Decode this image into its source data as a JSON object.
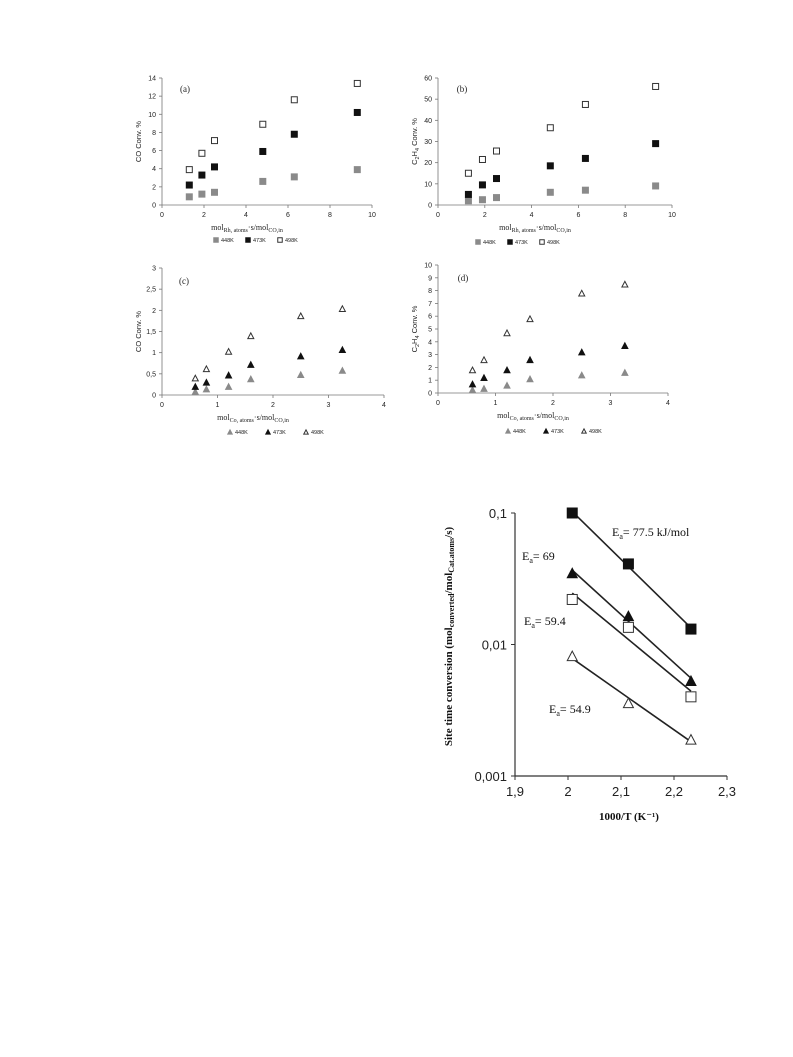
{
  "chart_data": [
    {
      "panel": "(a)",
      "type": "scatter",
      "ylabel": "CO Conv. %",
      "xlabel": "mol_Rh, atoms·s/mol_CO,in",
      "xlim": [
        0,
        10
      ],
      "ylim": [
        0,
        14
      ],
      "xticks": [
        "0",
        "2",
        "4",
        "6",
        "8",
        "10"
      ],
      "yticks": [
        "0",
        "2",
        "4",
        "6",
        "8",
        "10",
        "12",
        "14"
      ],
      "legend": [
        "448K",
        "473K",
        "498K"
      ],
      "series": [
        {
          "name": "448K",
          "marker": "square-gray",
          "x": [
            1.3,
            1.9,
            2.5,
            4.8,
            6.3,
            9.3
          ],
          "y": [
            0.9,
            1.2,
            1.4,
            2.6,
            3.1,
            3.9
          ]
        },
        {
          "name": "473K",
          "marker": "square-black",
          "x": [
            1.3,
            1.9,
            2.5,
            4.8,
            6.3,
            9.3
          ],
          "y": [
            2.2,
            3.3,
            4.2,
            5.9,
            7.8,
            10.2
          ]
        },
        {
          "name": "498K",
          "marker": "square-open",
          "x": [
            1.3,
            1.9,
            2.5,
            4.8,
            6.3,
            9.3
          ],
          "y": [
            3.9,
            5.7,
            7.1,
            8.9,
            11.6,
            13.4
          ]
        }
      ]
    },
    {
      "panel": "(b)",
      "type": "scatter",
      "ylabel": "C2H4 Conv. %",
      "xlabel": "mol_Rh, atoms·s/mol_CO,in",
      "xlim": [
        0,
        10
      ],
      "ylim": [
        0,
        60
      ],
      "xticks": [
        "0",
        "2",
        "4",
        "6",
        "8",
        "10"
      ],
      "yticks": [
        "0",
        "10",
        "20",
        "30",
        "40",
        "50",
        "60"
      ],
      "legend": [
        "448K",
        "473K",
        "498K"
      ],
      "series": [
        {
          "name": "448K",
          "marker": "square-gray",
          "x": [
            1.3,
            1.9,
            2.5,
            4.8,
            6.3,
            9.3
          ],
          "y": [
            2,
            2.5,
            3.5,
            6,
            7,
            9
          ]
        },
        {
          "name": "473K",
          "marker": "square-black",
          "x": [
            1.3,
            1.9,
            2.5,
            4.8,
            6.3,
            9.3
          ],
          "y": [
            5,
            9.5,
            12.5,
            18.5,
            22,
            29
          ]
        },
        {
          "name": "498K",
          "marker": "square-open",
          "x": [
            1.3,
            1.9,
            2.5,
            4.8,
            6.3,
            9.3
          ],
          "y": [
            15,
            21.5,
            25.5,
            36.5,
            47.5,
            56
          ]
        }
      ]
    },
    {
      "panel": "(c)",
      "type": "scatter",
      "ylabel": "CO Conv. %",
      "xlabel": "mol_Co, atoms·s/mol_CO,in",
      "xlim": [
        0,
        4
      ],
      "ylim": [
        0,
        3
      ],
      "xticks": [
        "0",
        "1",
        "2",
        "3",
        "4"
      ],
      "yticks": [
        "0",
        "0,5",
        "1",
        "1,5",
        "2",
        "2,5",
        "3"
      ],
      "legend": [
        "448K",
        "473K",
        "498K"
      ],
      "series": [
        {
          "name": "448K",
          "marker": "triangle-gray",
          "x": [
            0.6,
            0.8,
            1.2,
            1.6,
            2.5,
            3.25
          ],
          "y": [
            0.08,
            0.14,
            0.2,
            0.38,
            0.48,
            0.58
          ]
        },
        {
          "name": "473K",
          "marker": "triangle-black",
          "x": [
            0.6,
            0.8,
            1.2,
            1.6,
            2.5,
            3.25
          ],
          "y": [
            0.2,
            0.3,
            0.47,
            0.72,
            0.92,
            1.07
          ]
        },
        {
          "name": "498K",
          "marker": "triangle-open",
          "x": [
            0.6,
            0.8,
            1.2,
            1.6,
            2.5,
            3.25
          ],
          "y": [
            0.4,
            0.62,
            1.03,
            1.4,
            1.87,
            2.04
          ]
        }
      ]
    },
    {
      "panel": "(d)",
      "type": "scatter",
      "ylabel": "C2H4 Conv. %",
      "xlabel": "mol_Co, atoms·s/mol_CO,in",
      "xlim": [
        0,
        4
      ],
      "ylim": [
        0,
        10
      ],
      "xticks": [
        "0",
        "1",
        "2",
        "3",
        "4"
      ],
      "yticks": [
        "0",
        "1",
        "2",
        "3",
        "4",
        "5",
        "6",
        "7",
        "8",
        "9",
        "10"
      ],
      "legend": [
        "448K",
        "473K",
        "498K"
      ],
      "series": [
        {
          "name": "448K",
          "marker": "triangle-gray",
          "x": [
            0.6,
            0.8,
            1.2,
            1.6,
            2.5,
            3.25
          ],
          "y": [
            0.25,
            0.35,
            0.6,
            1.1,
            1.4,
            1.6
          ]
        },
        {
          "name": "473K",
          "marker": "triangle-black",
          "x": [
            0.6,
            0.8,
            1.2,
            1.6,
            2.5,
            3.25
          ],
          "y": [
            0.7,
            1.2,
            1.8,
            2.6,
            3.2,
            3.7
          ]
        },
        {
          "name": "498K",
          "marker": "triangle-open",
          "x": [
            0.6,
            0.8,
            1.2,
            1.6,
            2.5,
            3.25
          ],
          "y": [
            1.8,
            2.6,
            4.7,
            5.8,
            7.8,
            8.5
          ]
        }
      ]
    },
    {
      "panel": "arrhenius",
      "type": "scatter",
      "ylabel": "Site time conversion (mol_converted/mol_Cat.atoms/s)",
      "xlabel": "1000/T (K⁻¹)",
      "xlim": [
        1.9,
        2.3
      ],
      "ylim": [
        0.001,
        0.1
      ],
      "yscale": "log",
      "xticks": [
        "1,9",
        "2",
        "2,1",
        "2,2",
        "2,3"
      ],
      "yticks": [
        "0,001",
        "0,01",
        "0,1"
      ],
      "series": [
        {
          "marker": "square-black",
          "x": [
            2.008,
            2.114,
            2.232
          ],
          "y": [
            0.1,
            0.041,
            0.0131
          ],
          "fit": true,
          "label": "77.5  kJ/mol"
        },
        {
          "marker": "triangle-black",
          "x": [
            2.008,
            2.114,
            2.232
          ],
          "y": [
            0.035,
            0.0165,
            0.0053
          ],
          "fit": true,
          "label": "69"
        },
        {
          "marker": "square-open",
          "x": [
            2.008,
            2.114,
            2.232
          ],
          "y": [
            0.022,
            0.0135,
            0.004
          ],
          "fit": true,
          "label": "59.4"
        },
        {
          "marker": "triangle-open",
          "x": [
            2.008,
            2.114,
            2.232
          ],
          "y": [
            0.0082,
            0.0036,
            0.0019
          ],
          "fit": true,
          "label": "54.9"
        }
      ]
    }
  ]
}
